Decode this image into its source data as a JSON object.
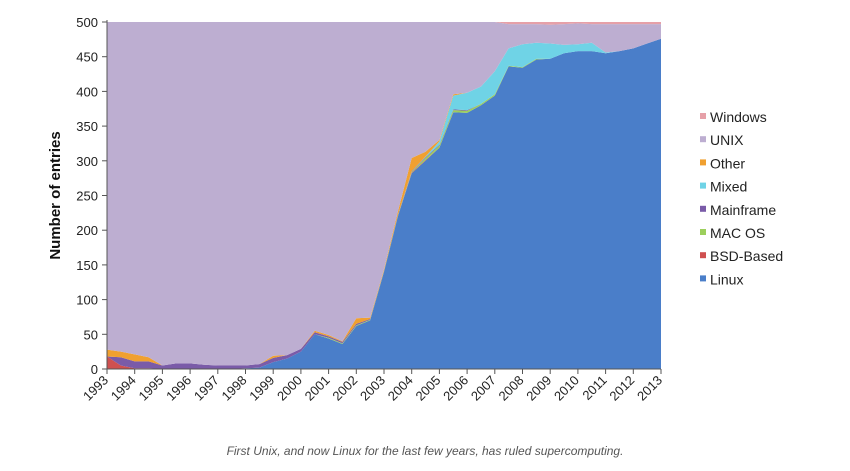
{
  "caption": "First Unix, and now Linux for the last few years, has ruled supercomputing.",
  "chart_data": {
    "type": "area",
    "stacked": true,
    "xlabel": "",
    "ylabel": "Number of entries",
    "ylim": [
      0,
      500
    ],
    "yticks": [
      0,
      50,
      100,
      150,
      200,
      250,
      300,
      350,
      400,
      450,
      500
    ],
    "xticks": [
      "1993",
      "1994",
      "1995",
      "1996",
      "1997",
      "1998",
      "1999",
      "2000",
      "2001",
      "2002",
      "2003",
      "2004",
      "2005",
      "2006",
      "2007",
      "2008",
      "2009",
      "2010",
      "2011",
      "2012",
      "2013"
    ],
    "legend_position": "right",
    "x": [
      1993.0,
      1993.5,
      1994.0,
      1994.5,
      1995.0,
      1995.5,
      1996.0,
      1996.5,
      1997.0,
      1997.5,
      1998.0,
      1998.5,
      1999.0,
      1999.5,
      2000.0,
      2000.5,
      2001.0,
      2001.5,
      2002.0,
      2002.5,
      2003.0,
      2003.5,
      2004.0,
      2004.5,
      2005.0,
      2005.5,
      2006.0,
      2006.5,
      2007.0,
      2007.5,
      2008.0,
      2008.5,
      2009.0,
      2009.5,
      2010.0,
      2010.5,
      2011.0,
      2011.5,
      2012.0,
      2012.5,
      2013.0
    ],
    "series": [
      {
        "name": "Linux",
        "color": "#4a7ec9",
        "values": [
          0,
          0,
          0,
          0,
          0,
          0,
          0,
          0,
          0,
          0,
          1,
          2,
          10,
          15,
          25,
          50,
          44,
          36,
          62,
          70,
          140,
          220,
          282,
          300,
          319,
          370,
          369,
          380,
          394,
          436,
          434,
          446,
          447,
          455,
          458,
          458,
          455,
          458,
          462,
          469,
          476
        ]
      },
      {
        "name": "BSD-Based",
        "color": "#cf5050",
        "values": [
          18,
          5,
          1,
          1,
          0,
          0,
          0,
          0,
          0,
          0,
          0,
          0,
          0,
          0,
          0,
          0,
          0,
          0,
          0,
          0,
          0,
          0,
          1,
          1,
          0,
          0,
          0,
          0,
          0,
          0,
          0,
          0,
          0,
          0,
          0,
          0,
          0,
          0,
          0,
          0,
          0
        ]
      },
      {
        "name": "MAC OS",
        "color": "#9ccf5c",
        "values": [
          0,
          0,
          0,
          0,
          0,
          0,
          0,
          0,
          0,
          0,
          0,
          0,
          0,
          0,
          0,
          0,
          1,
          1,
          1,
          1,
          1,
          1,
          1,
          3,
          3,
          3,
          3,
          2,
          2,
          1,
          1,
          1,
          0,
          0,
          0,
          0,
          0,
          0,
          0,
          0,
          0
        ]
      },
      {
        "name": "Mainframe",
        "color": "#7a5ba8",
        "values": [
          0,
          12,
          10,
          10,
          5,
          8,
          8,
          6,
          5,
          5,
          4,
          5,
          6,
          5,
          4,
          3,
          2,
          2,
          2,
          1,
          1,
          1,
          1,
          1,
          1,
          1,
          1,
          0,
          0,
          0,
          0,
          0,
          0,
          0,
          0,
          0,
          0,
          0,
          0,
          0,
          0
        ]
      },
      {
        "name": "Mixed",
        "color": "#6fd3e6",
        "values": [
          0,
          0,
          0,
          0,
          0,
          0,
          0,
          0,
          0,
          0,
          0,
          0,
          0,
          0,
          0,
          0,
          0,
          0,
          0,
          0,
          0,
          0,
          0,
          1,
          5,
          20,
          25,
          25,
          33,
          25,
          33,
          23,
          22,
          12,
          10,
          12,
          1,
          0,
          0,
          0,
          0
        ]
      },
      {
        "name": "Other",
        "color": "#f0a030",
        "values": [
          10,
          8,
          10,
          6,
          0,
          0,
          0,
          0,
          0,
          0,
          0,
          0,
          3,
          0,
          0,
          2,
          2,
          1,
          8,
          2,
          2,
          5,
          19,
          7,
          2,
          2,
          0,
          0,
          0,
          0,
          0,
          0,
          0,
          0,
          0,
          0,
          0,
          0,
          0,
          0,
          0
        ]
      },
      {
        "name": "UNIX",
        "color": "#bdaed1",
        "values": [
          472,
          475,
          479,
          483,
          495,
          492,
          492,
          494,
          495,
          495,
          495,
          493,
          481,
          480,
          471,
          445,
          451,
          460,
          427,
          426,
          356,
          273,
          196,
          187,
          170,
          104,
          102,
          93,
          71,
          35,
          29,
          27,
          27,
          30,
          30,
          27,
          41,
          39,
          35,
          28,
          21
        ]
      },
      {
        "name": "Windows",
        "color": "#e6a0a8",
        "values": [
          0,
          0,
          0,
          0,
          0,
          0,
          0,
          0,
          0,
          0,
          0,
          0,
          0,
          0,
          0,
          0,
          0,
          0,
          0,
          0,
          0,
          0,
          0,
          0,
          0,
          0,
          0,
          0,
          0,
          3,
          3,
          3,
          4,
          3,
          2,
          3,
          3,
          3,
          3,
          3,
          3
        ]
      }
    ],
    "legend_order": [
      "Windows",
      "UNIX",
      "Other",
      "Mixed",
      "Mainframe",
      "MAC OS",
      "BSD-Based",
      "Linux"
    ]
  }
}
